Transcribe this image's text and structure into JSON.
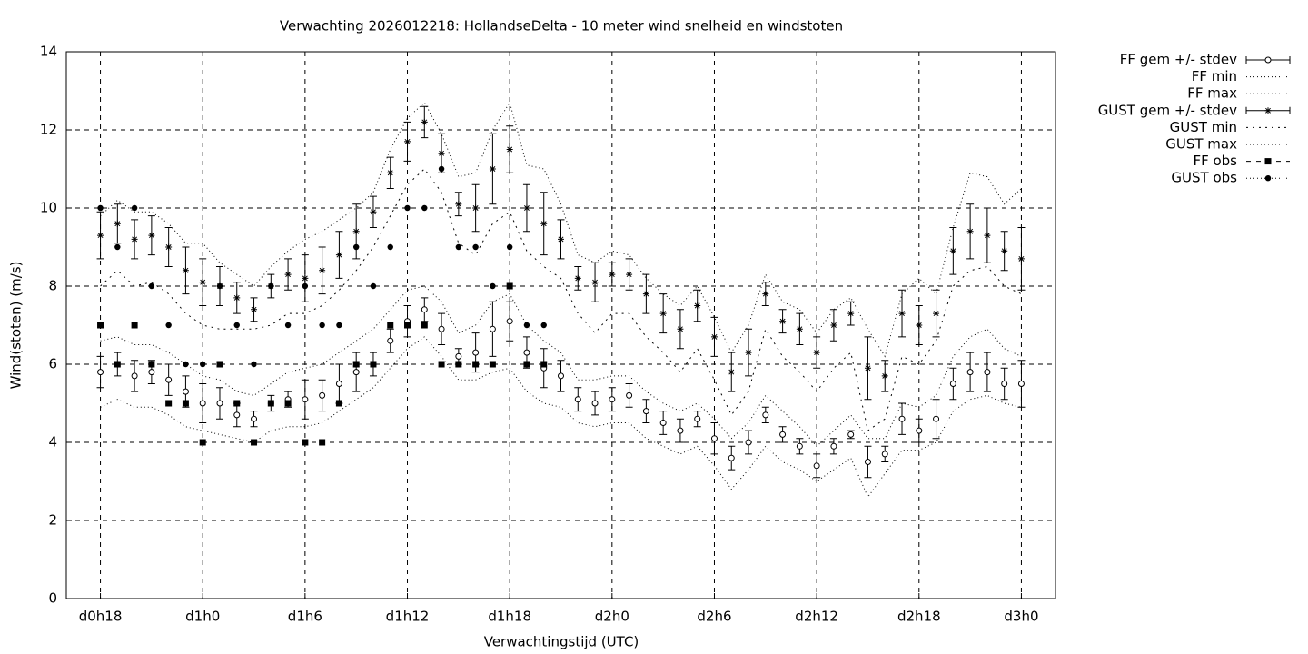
{
  "chart_data": {
    "type": "errorbar",
    "title": "Verwachting 2026012218: HollandseDelta - 10 meter wind snelheid en windstoten",
    "x_label": "Verwachtingstijd (UTC)",
    "y_label": "Wind(stoten) (m/s)",
    "x": [
      18,
      19,
      20,
      21,
      22,
      23,
      24,
      25,
      26,
      27,
      28,
      29,
      30,
      31,
      32,
      33,
      34,
      35,
      36,
      37,
      38,
      39,
      40,
      41,
      42,
      43,
      44,
      45,
      46,
      47,
      48,
      49,
      50,
      51,
      52,
      53,
      54,
      55,
      56,
      57,
      58,
      59,
      60,
      61,
      62,
      63,
      64,
      65,
      66,
      67,
      68,
      69,
      70,
      71,
      72
    ],
    "xlim": [
      16,
      74
    ],
    "xticks": [
      {
        "value": 18,
        "label": "d0h18"
      },
      {
        "value": 24,
        "label": "d1h0"
      },
      {
        "value": 30,
        "label": "d1h6"
      },
      {
        "value": 36,
        "label": "d1h12"
      },
      {
        "value": 42,
        "label": "d1h18"
      },
      {
        "value": 48,
        "label": "d2h0"
      },
      {
        "value": 54,
        "label": "d2h6"
      },
      {
        "value": 60,
        "label": "d2h12"
      },
      {
        "value": 66,
        "label": "d2h18"
      },
      {
        "value": 72,
        "label": "d3h0"
      }
    ],
    "ylim": [
      0,
      14
    ],
    "yticks": [
      0,
      2,
      4,
      6,
      8,
      10,
      12,
      14
    ],
    "grid": true,
    "legend": "outside-top-right",
    "series": [
      {
        "name": "FF gem +/- stdev",
        "color": "#000000",
        "style": "errorbar",
        "marker": "open-circle",
        "values": [
          5.8,
          6.0,
          5.7,
          5.8,
          5.6,
          5.3,
          5.0,
          5.0,
          4.7,
          4.6,
          5.0,
          5.1,
          5.1,
          5.2,
          5.5,
          5.8,
          6.0,
          6.6,
          7.1,
          7.4,
          6.9,
          6.2,
          6.3,
          6.9,
          7.1,
          6.3,
          5.9,
          5.7,
          5.1,
          5.0,
          5.1,
          5.2,
          4.8,
          4.5,
          4.3,
          4.6,
          4.1,
          3.6,
          4.0,
          4.7,
          4.2,
          3.9,
          3.4,
          3.9,
          4.2,
          3.5,
          3.7,
          4.6,
          4.3,
          4.6,
          5.5,
          5.8,
          5.8,
          5.5,
          5.5
        ],
        "errors": [
          0.4,
          0.3,
          0.4,
          0.3,
          0.4,
          0.4,
          0.5,
          0.4,
          0.3,
          0.2,
          0.2,
          0.2,
          0.5,
          0.4,
          0.5,
          0.5,
          0.3,
          0.3,
          0.4,
          0.3,
          0.4,
          0.2,
          0.5,
          0.7,
          0.5,
          0.4,
          0.5,
          0.4,
          0.3,
          0.3,
          0.3,
          0.3,
          0.3,
          0.3,
          0.3,
          0.2,
          0.4,
          0.3,
          0.3,
          0.2,
          0.2,
          0.2,
          0.3,
          0.2,
          0.1,
          0.4,
          0.2,
          0.4,
          0.3,
          0.5,
          0.4,
          0.5,
          0.5,
          0.4,
          0.6
        ]
      },
      {
        "name": "FF min",
        "color": "#000000",
        "style": "line",
        "dash": "fine-dotted",
        "values": [
          4.9,
          5.1,
          4.9,
          4.9,
          4.7,
          4.4,
          4.3,
          4.2,
          4.1,
          4.0,
          4.3,
          4.4,
          4.4,
          4.5,
          4.8,
          5.1,
          5.4,
          5.9,
          6.4,
          6.7,
          6.2,
          5.6,
          5.6,
          5.8,
          5.9,
          5.3,
          5.0,
          4.9,
          4.5,
          4.4,
          4.5,
          4.5,
          4.1,
          3.9,
          3.7,
          3.9,
          3.4,
          2.8,
          3.3,
          3.9,
          3.5,
          3.3,
          3.0,
          3.3,
          3.6,
          2.6,
          3.2,
          3.8,
          3.8,
          4.0,
          4.8,
          5.1,
          5.2,
          5.0,
          4.9
        ]
      },
      {
        "name": "FF max",
        "color": "#000000",
        "style": "line",
        "dash": "fine-dotted",
        "values": [
          6.6,
          6.7,
          6.5,
          6.5,
          6.3,
          6.0,
          5.7,
          5.6,
          5.3,
          5.2,
          5.5,
          5.8,
          5.9,
          6.0,
          6.3,
          6.6,
          6.9,
          7.4,
          7.9,
          8.0,
          7.6,
          6.8,
          7.0,
          7.6,
          7.8,
          7.0,
          6.6,
          6.3,
          5.6,
          5.6,
          5.7,
          5.7,
          5.3,
          5.0,
          4.8,
          5.0,
          4.6,
          4.1,
          4.5,
          5.2,
          4.8,
          4.4,
          3.9,
          4.3,
          4.7,
          4.1,
          4.1,
          5.0,
          4.9,
          5.2,
          6.2,
          6.7,
          6.9,
          6.4,
          6.2
        ]
      },
      {
        "name": "GUST gem +/- stdev",
        "color": "#000000",
        "style": "errorbar",
        "marker": "star",
        "values": [
          9.3,
          9.6,
          9.2,
          9.3,
          9.0,
          8.4,
          8.1,
          8.0,
          7.7,
          7.4,
          8.0,
          8.3,
          8.2,
          8.4,
          8.8,
          9.4,
          9.9,
          10.9,
          11.7,
          12.2,
          11.4,
          10.1,
          10.0,
          11.0,
          11.5,
          10.0,
          9.6,
          9.2,
          8.2,
          8.1,
          8.3,
          8.3,
          7.8,
          7.3,
          6.9,
          7.5,
          6.7,
          5.8,
          6.3,
          7.8,
          7.1,
          6.9,
          6.3,
          7.0,
          7.3,
          5.9,
          5.7,
          7.3,
          7.0,
          7.3,
          8.9,
          9.4,
          9.3,
          8.9,
          8.7
        ],
        "errors": [
          0.6,
          0.5,
          0.5,
          0.5,
          0.5,
          0.6,
          0.6,
          0.5,
          0.4,
          0.3,
          0.3,
          0.4,
          0.6,
          0.6,
          0.6,
          0.7,
          0.4,
          0.4,
          0.5,
          0.4,
          0.5,
          0.3,
          0.6,
          0.9,
          0.6,
          0.6,
          0.8,
          0.5,
          0.3,
          0.5,
          0.3,
          0.4,
          0.5,
          0.5,
          0.5,
          0.4,
          0.5,
          0.5,
          0.6,
          0.3,
          0.3,
          0.4,
          0.4,
          0.4,
          0.3,
          0.8,
          0.4,
          0.6,
          0.5,
          0.6,
          0.6,
          0.7,
          0.7,
          0.5,
          0.8
        ]
      },
      {
        "name": "GUST min",
        "color": "#000000",
        "style": "line",
        "dash": "coarse-dotted",
        "values": [
          8.0,
          8.4,
          8.0,
          8.1,
          7.8,
          7.3,
          7.0,
          6.9,
          6.9,
          6.9,
          7.0,
          7.3,
          7.3,
          7.5,
          7.9,
          8.4,
          9.0,
          9.8,
          10.6,
          11.0,
          10.4,
          9.1,
          8.8,
          9.6,
          9.9,
          8.9,
          8.5,
          8.2,
          7.3,
          6.8,
          7.3,
          7.3,
          6.7,
          6.3,
          5.8,
          6.4,
          5.6,
          4.7,
          5.3,
          6.9,
          6.2,
          5.8,
          5.3,
          5.9,
          6.3,
          4.3,
          4.6,
          6.2,
          6.0,
          6.6,
          8.0,
          8.4,
          8.5,
          8.0,
          7.8
        ]
      },
      {
        "name": "GUST max",
        "color": "#000000",
        "style": "line",
        "dash": "fine-dotted",
        "values": [
          9.8,
          10.2,
          9.9,
          9.9,
          9.6,
          9.1,
          9.1,
          8.6,
          8.3,
          8.0,
          8.5,
          8.9,
          9.2,
          9.4,
          9.7,
          10.0,
          10.4,
          11.5,
          12.3,
          12.7,
          11.9,
          10.8,
          10.9,
          12.0,
          12.7,
          11.1,
          11.0,
          10.1,
          8.8,
          8.6,
          8.9,
          8.8,
          8.2,
          7.8,
          7.5,
          8.0,
          7.2,
          6.3,
          7.0,
          8.3,
          7.6,
          7.4,
          6.8,
          7.4,
          7.7,
          6.9,
          6.2,
          7.8,
          8.2,
          7.8,
          9.5,
          10.9,
          10.8,
          10.1,
          10.5
        ]
      },
      {
        "name": "FF obs",
        "color": "#000000",
        "style": "points",
        "marker": "square",
        "dash": "dashed",
        "values": [
          7,
          6,
          7,
          6,
          5,
          5,
          4,
          6,
          5,
          4,
          5,
          5,
          4,
          4,
          5,
          6,
          6,
          7,
          7,
          7,
          6,
          6,
          6,
          6,
          8,
          6,
          6,
          null,
          null,
          null,
          null,
          null,
          null,
          null,
          null,
          null,
          null,
          null,
          null,
          null,
          null,
          null,
          null,
          null,
          null,
          null,
          null,
          null,
          null,
          null,
          null,
          null,
          null,
          null,
          null
        ]
      },
      {
        "name": "GUST obs",
        "color": "#000000",
        "style": "points",
        "marker": "circle",
        "dash": "fine-dotted",
        "values": [
          10,
          9,
          10,
          8,
          7,
          6,
          6,
          8,
          7,
          6,
          8,
          7,
          8,
          7,
          7,
          9,
          8,
          9,
          10,
          10,
          11,
          9,
          9,
          8,
          9,
          7,
          7,
          null,
          null,
          null,
          null,
          null,
          null,
          null,
          null,
          null,
          null,
          null,
          null,
          null,
          null,
          null,
          null,
          null,
          null,
          null,
          null,
          null,
          null,
          null,
          null,
          null,
          null,
          null,
          null
        ]
      }
    ]
  }
}
